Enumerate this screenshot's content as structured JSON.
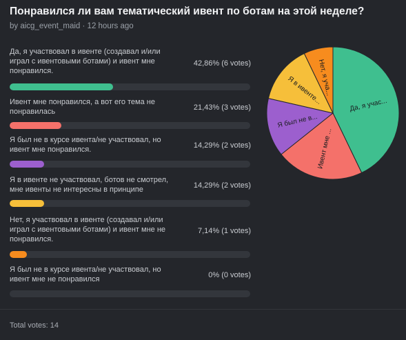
{
  "poll": {
    "title": "Понравился ли вам тематический ивент по ботам на этой неделе?",
    "author": "by aicg_event_maid",
    "separator": "·",
    "time": "12 hours ago",
    "total": "Total votes: 14"
  },
  "options": [
    {
      "label": "Да, я участвовал в ивенте (создавал и/или играл с ивентовыми ботами) и ивент мне понравился.",
      "value": "42,86% (6 votes)",
      "pie_label": "Да, я учас...",
      "color": "#3fbf8f"
    },
    {
      "label": "Ивент мне понравился, а вот его тема не понравилась",
      "value": "21,43% (3 votes)",
      "pie_label": "Ивент мне ...",
      "color": "#f4716a"
    },
    {
      "label": "Я был не в курсе ивента/не участвовал, но ивент мне понравился.",
      "value": "14,29% (2 votes)",
      "pie_label": "Я был не в...",
      "color": "#9c5fce"
    },
    {
      "label": "Я в ивенте не участвовал, ботов не смотрел, мне ивенты не интересны в принципе",
      "value": "14,29% (2 votes)",
      "pie_label": "Я в ивенте...",
      "color": "#f6bf3a"
    },
    {
      "label": "Нет, я участвовал в ивенте (создавал и/или играл с ивентовыми ботами) и ивент мне не понравился.",
      "value": "7,14% (1 votes)",
      "pie_label": "Нет, я уча...",
      "color": "#f78c1e"
    },
    {
      "label": "Я был не в курсе ивента/не участвовал, но ивент мне не понравился",
      "value": "0% (0 votes)",
      "pie_label": "",
      "color": "#5a5d63"
    }
  ],
  "chart_data": {
    "type": "pie",
    "categories": [
      "Да, я участвовал в ивенте (создавал и/или играл с ивентовыми ботами) и ивент мне понравился.",
      "Ивент мне понравился, а вот его тема не понравилась",
      "Я был не в курсе ивента/не участвовал, но ивент мне понравился.",
      "Я в ивенте не участвовал, ботов не смотрел, мне ивенты не интересны в принципе",
      "Нет, я участвовал в ивенте (создавал и/или играл с ивентовыми ботами) и ивент мне не понравился.",
      "Я был не в курсе ивента/не участвовал, но ивент мне не понравился"
    ],
    "values": [
      6,
      3,
      2,
      2,
      1,
      0
    ],
    "percent": [
      42.86,
      21.43,
      14.29,
      14.29,
      7.14,
      0
    ],
    "colors": [
      "#3fbf8f",
      "#f4716a",
      "#9c5fce",
      "#f6bf3a",
      "#f78c1e",
      "#5a5d63"
    ]
  }
}
